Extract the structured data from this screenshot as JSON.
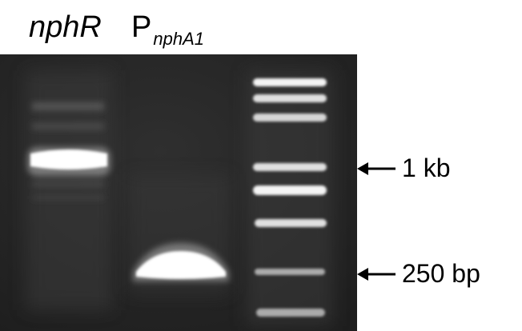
{
  "lanes": [
    {
      "label": "nphR",
      "subscript": ""
    },
    {
      "label": "P",
      "subscript": "nphA1"
    }
  ],
  "markers": [
    {
      "label": "1 kb"
    },
    {
      "label": "250 bp"
    }
  ],
  "colors": {
    "gel_background": "#262626",
    "band": "#ffffff",
    "arrow": "#000000"
  }
}
